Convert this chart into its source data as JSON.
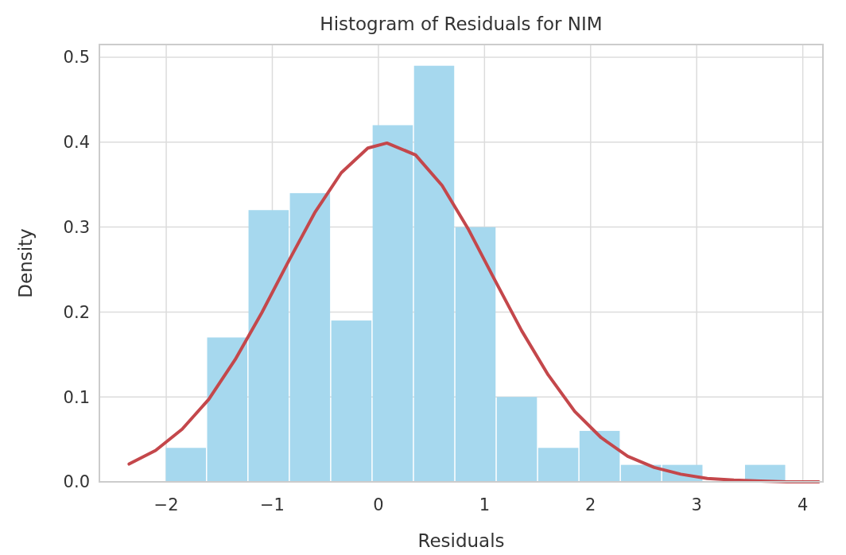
{
  "chart_data": {
    "type": "histogram",
    "title": "Histogram of Residuals for NIM",
    "xlabel": "Residuals",
    "ylabel": "Density",
    "bins": [
      -2.01,
      -1.62,
      -1.23,
      -0.84,
      -0.45,
      -0.06,
      0.33,
      0.72,
      1.11,
      1.5,
      1.89,
      2.28,
      2.67,
      3.06,
      3.45,
      3.84
    ],
    "values": [
      0.04,
      0.17,
      0.32,
      0.34,
      0.19,
      0.42,
      0.49,
      0.3,
      0.1,
      0.04,
      0.06,
      0.02,
      0.02,
      0,
      0.02
    ],
    "color": "#a6d8ee",
    "series": [
      {
        "type": "line",
        "color": "#c4474b",
        "x": [
          -2.35,
          -2.1,
          -1.85,
          -1.6,
          -1.35,
          -1.1,
          -0.85,
          -0.6,
          -0.35,
          -0.1,
          0.08,
          0.35,
          0.6,
          0.85,
          1.1,
          1.35,
          1.6,
          1.85,
          2.1,
          2.35,
          2.6,
          2.85,
          3.1,
          3.35,
          3.6,
          3.85,
          4.15
        ],
        "values": [
          0.021,
          0.037,
          0.062,
          0.097,
          0.144,
          0.199,
          0.259,
          0.317,
          0.364,
          0.393,
          0.399,
          0.385,
          0.349,
          0.297,
          0.237,
          0.178,
          0.126,
          0.083,
          0.052,
          0.03,
          0.017,
          0.009,
          0.004,
          0.002,
          0.001,
          0,
          0
        ]
      }
    ],
    "xlim": [
      -2.63,
      4.19
    ],
    "xticks": [
      {
        "value": -2,
        "label": "−2"
      },
      {
        "value": -1,
        "label": "−1"
      },
      0,
      1,
      2,
      3,
      4
    ],
    "ylim": [
      0,
      0.515
    ],
    "yticks": [
      {
        "value": 0,
        "label": "0.0"
      },
      0.1,
      0.2,
      0.3,
      0.4,
      0.5
    ],
    "grid": true
  }
}
